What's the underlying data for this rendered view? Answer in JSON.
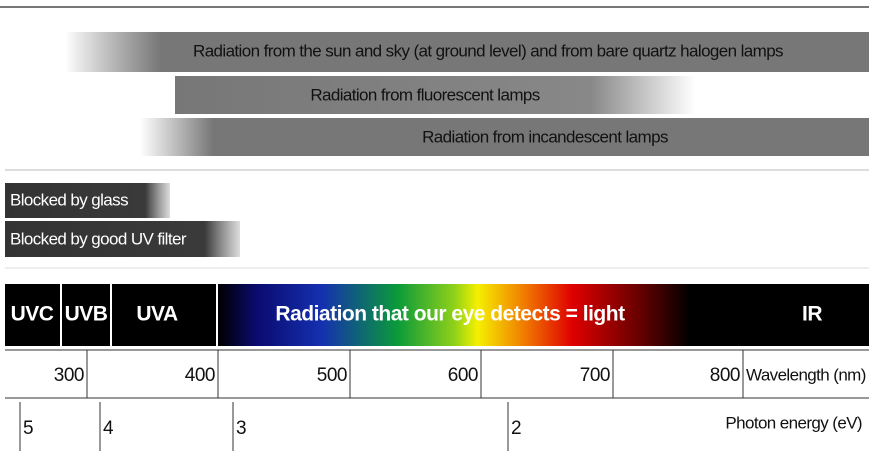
{
  "sources": [
    {
      "label": "Radiation from the sun and sky (at ground level) and from bare quartz halogen lamps"
    },
    {
      "label": "Radiation from fluorescent lamps"
    },
    {
      "label": "Radiation from incandescent lamps"
    }
  ],
  "filters": [
    {
      "label": "Blocked by glass"
    },
    {
      "label": "Blocked by good UV filter"
    }
  ],
  "spectrum": {
    "uvc": "UVC",
    "uvb": "UVB",
    "uva": "UVA",
    "visible": "Radiation that our eye detects = light",
    "ir": "IR"
  },
  "wavelength": {
    "ticks": [
      "300",
      "400",
      "500",
      "600",
      "700",
      "800"
    ],
    "label": "Wavelength (nm)"
  },
  "photon_energy": {
    "ticks": [
      "5",
      "4",
      "3",
      "2"
    ],
    "label": "Photon energy (eV)"
  }
}
